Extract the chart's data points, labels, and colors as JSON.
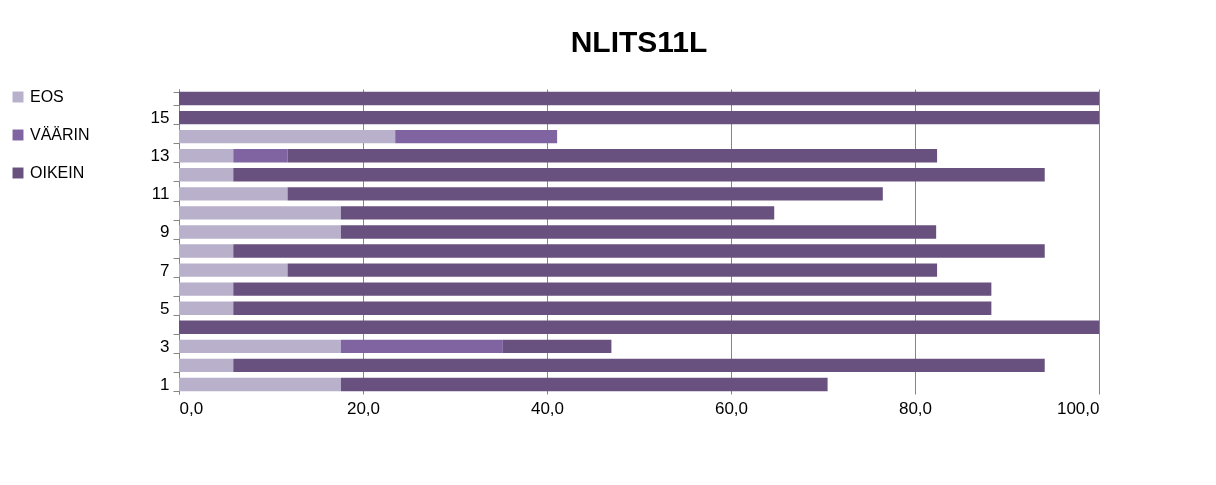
{
  "chart_data": {
    "type": "bar",
    "orientation": "horizontal",
    "stacked": true,
    "title": "NLITS11L",
    "categories": [
      null,
      "15",
      null,
      "13",
      null,
      "11",
      null,
      "9",
      null,
      "7",
      null,
      "5",
      null,
      "3",
      null,
      "1"
    ],
    "series": [
      {
        "name": "EOS",
        "color": "#b9b0cb",
        "values": [
          0,
          0,
          23.5,
          5.9,
          5.9,
          11.8,
          17.6,
          17.6,
          5.9,
          11.8,
          5.9,
          5.9,
          0,
          17.6,
          5.9,
          17.6
        ]
      },
      {
        "name": "VÄÄRIN",
        "color": "#8064a2",
        "values": [
          0,
          0,
          17.6,
          5.9,
          0,
          0,
          0,
          0,
          0,
          0,
          0,
          0,
          0,
          17.6,
          0,
          0
        ]
      },
      {
        "name": "OIKEIN",
        "color": "#68507f",
        "values": [
          100,
          100,
          0,
          70.6,
          88.2,
          64.7,
          47.1,
          64.7,
          88.2,
          70.6,
          82.4,
          82.4,
          100,
          11.8,
          88.2,
          52.9
        ]
      }
    ],
    "xlim": [
      0,
      100
    ],
    "xticks": [
      {
        "value": 0,
        "label": "0,0"
      },
      {
        "value": 20,
        "label": "20,0"
      },
      {
        "value": 40,
        "label": "40,0"
      },
      {
        "value": 60,
        "label": "60,0"
      },
      {
        "value": 80,
        "label": "80,0"
      },
      {
        "value": 100,
        "label": "100,0"
      }
    ],
    "grid": "x",
    "legend": "left"
  }
}
